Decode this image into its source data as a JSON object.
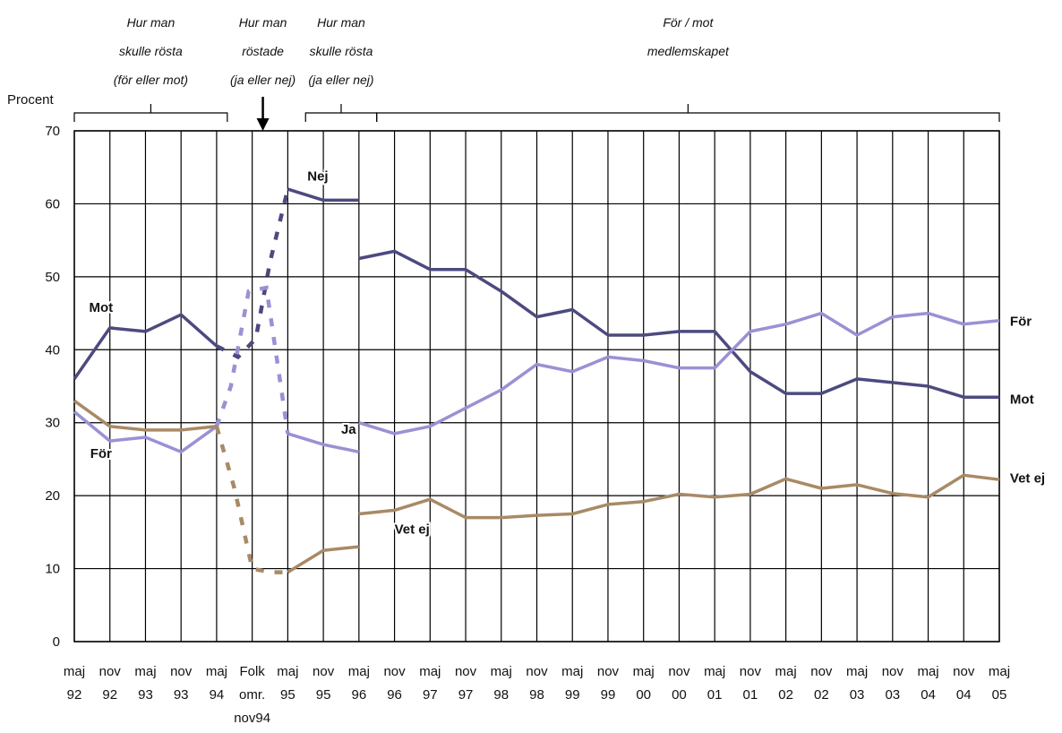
{
  "chart_data": {
    "type": "line",
    "ylabel": "Procent",
    "ylim": [
      0,
      70
    ],
    "yticks": [
      0,
      10,
      20,
      30,
      40,
      50,
      60,
      70
    ],
    "grid": true,
    "x_labels": [
      [
        "maj",
        "92"
      ],
      [
        "nov",
        "92"
      ],
      [
        "maj",
        "93"
      ],
      [
        "nov",
        "93"
      ],
      [
        "maj",
        "94"
      ],
      [
        "Folk",
        "omr.",
        "nov94"
      ],
      [
        "maj",
        "95"
      ],
      [
        "nov",
        "95"
      ],
      [
        "maj",
        "96"
      ],
      [
        "nov",
        "96"
      ],
      [
        "maj",
        "97"
      ],
      [
        "nov",
        "97"
      ],
      [
        "maj",
        "98"
      ],
      [
        "nov",
        "98"
      ],
      [
        "maj",
        "99"
      ],
      [
        "nov",
        "99"
      ],
      [
        "maj",
        "00"
      ],
      [
        "nov",
        "00"
      ],
      [
        "maj",
        "01"
      ],
      [
        "nov",
        "01"
      ],
      [
        "maj",
        "02"
      ],
      [
        "nov",
        "02"
      ],
      [
        "maj",
        "03"
      ],
      [
        "nov",
        "03"
      ],
      [
        "maj",
        "04"
      ],
      [
        "nov",
        "04"
      ],
      [
        "maj",
        "05"
      ]
    ],
    "periods": [
      {
        "lines": [
          "Hur man",
          "skulle rösta",
          "(för eller mot)"
        ],
        "from": 0,
        "to": 4.3
      },
      {
        "lines": [
          "Hur man",
          "röstade",
          "(ja eller nej)"
        ],
        "at": 5.3
      },
      {
        "lines": [
          "Hur man",
          "skulle  rösta",
          "(ja eller nej)"
        ],
        "from": 6.5,
        "to": 8.5
      },
      {
        "lines": [
          "För / mot",
          "medlemskapet"
        ],
        "from": 8.5,
        "to": 26
      }
    ],
    "series": [
      {
        "name": "Mot",
        "color": "#4c4a7e",
        "segments": [
          {
            "x": [
              0,
              1,
              2,
              3,
              4
            ],
            "y": [
              36,
              43,
              42.5,
              44.8,
              40.5
            ]
          },
          {
            "x": [
              6,
              7,
              8
            ],
            "y": [
              62,
              60.5,
              60.5
            ]
          },
          {
            "x": [
              8,
              9,
              10,
              11,
              12,
              13,
              14,
              15,
              16,
              17,
              18,
              19,
              20,
              21,
              22,
              23,
              24,
              25,
              26
            ],
            "y": [
              52.5,
              53.5,
              51,
              51,
              48,
              44.5,
              45.5,
              42,
              42,
              42.5,
              42.5,
              37,
              34,
              34,
              36,
              35.5,
              35,
              33.5,
              33.5
            ]
          }
        ],
        "dashed": [
          {
            "x": [
              4,
              4.6,
              5.1,
              5.5,
              6
            ],
            "y": [
              40.5,
              39,
              41.5,
              52,
              62
            ]
          }
        ]
      },
      {
        "name": "För",
        "color": "#9a91d4",
        "segments": [
          {
            "x": [
              0,
              1,
              2,
              3,
              4
            ],
            "y": [
              31.5,
              27.5,
              28,
              26,
              29.5
            ]
          },
          {
            "x": [
              6,
              7,
              8
            ],
            "y": [
              28.5,
              27,
              26
            ]
          },
          {
            "x": [
              8,
              9,
              10,
              11,
              12,
              13,
              14,
              15,
              16,
              17,
              18,
              19,
              20,
              21,
              22,
              23,
              24,
              25,
              26
            ],
            "y": [
              30,
              28.5,
              29.5,
              32,
              34.5,
              38,
              37,
              39,
              38.5,
              37.5,
              37.5,
              42.5,
              43.5,
              45,
              42,
              44.5,
              45,
              43.5,
              44
            ]
          }
        ],
        "dashed": [
          {
            "x": [
              4,
              4.4,
              4.9,
              5.4,
              6
            ],
            "y": [
              29.5,
              35,
              48,
              48.5,
              28.5
            ]
          }
        ]
      },
      {
        "name": "Vet ej",
        "color": "#a88a66",
        "segments": [
          {
            "x": [
              0,
              1,
              2,
              3,
              4
            ],
            "y": [
              33,
              29.5,
              29,
              29,
              29.5
            ]
          },
          {
            "x": [
              6,
              7,
              8
            ],
            "y": [
              9.5,
              12.5,
              13
            ]
          },
          {
            "x": [
              8,
              9,
              10,
              11,
              12,
              13,
              14,
              15,
              16,
              17,
              18,
              19,
              20,
              21,
              22,
              23,
              24,
              25,
              26
            ],
            "y": [
              17.5,
              18,
              19.5,
              17,
              17,
              17.3,
              17.5,
              18.8,
              19.2,
              20.2,
              19.8,
              20.2,
              22.3,
              21,
              21.5,
              20.3,
              19.8,
              22.8,
              22.2
            ]
          }
        ],
        "dashed": [
          {
            "x": [
              4,
              4.5,
              5,
              5.5,
              6
            ],
            "y": [
              29.5,
              21,
              10,
              9.5,
              9.5
            ]
          }
        ]
      }
    ],
    "annotations": [
      {
        "text": "Mot",
        "x": 0.75,
        "y": 45.2,
        "anchor": "middle"
      },
      {
        "text": "För",
        "x": 0.75,
        "y": 25.2,
        "anchor": "middle"
      },
      {
        "text": "Nej",
        "x": 6.55,
        "y": 63.2,
        "anchor": "start"
      },
      {
        "text": "Ja",
        "x": 7.5,
        "y": 28.5,
        "anchor": "start"
      },
      {
        "text": "Vet ej",
        "x": 9.0,
        "y": 14.8,
        "anchor": "start"
      },
      {
        "text": "För",
        "x": 26.3,
        "y": 43.3,
        "anchor": "start"
      },
      {
        "text": "Mot",
        "x": 26.3,
        "y": 32.6,
        "anchor": "start"
      },
      {
        "text": "Vet ej",
        "x": 26.3,
        "y": 21.8,
        "anchor": "start"
      }
    ]
  }
}
